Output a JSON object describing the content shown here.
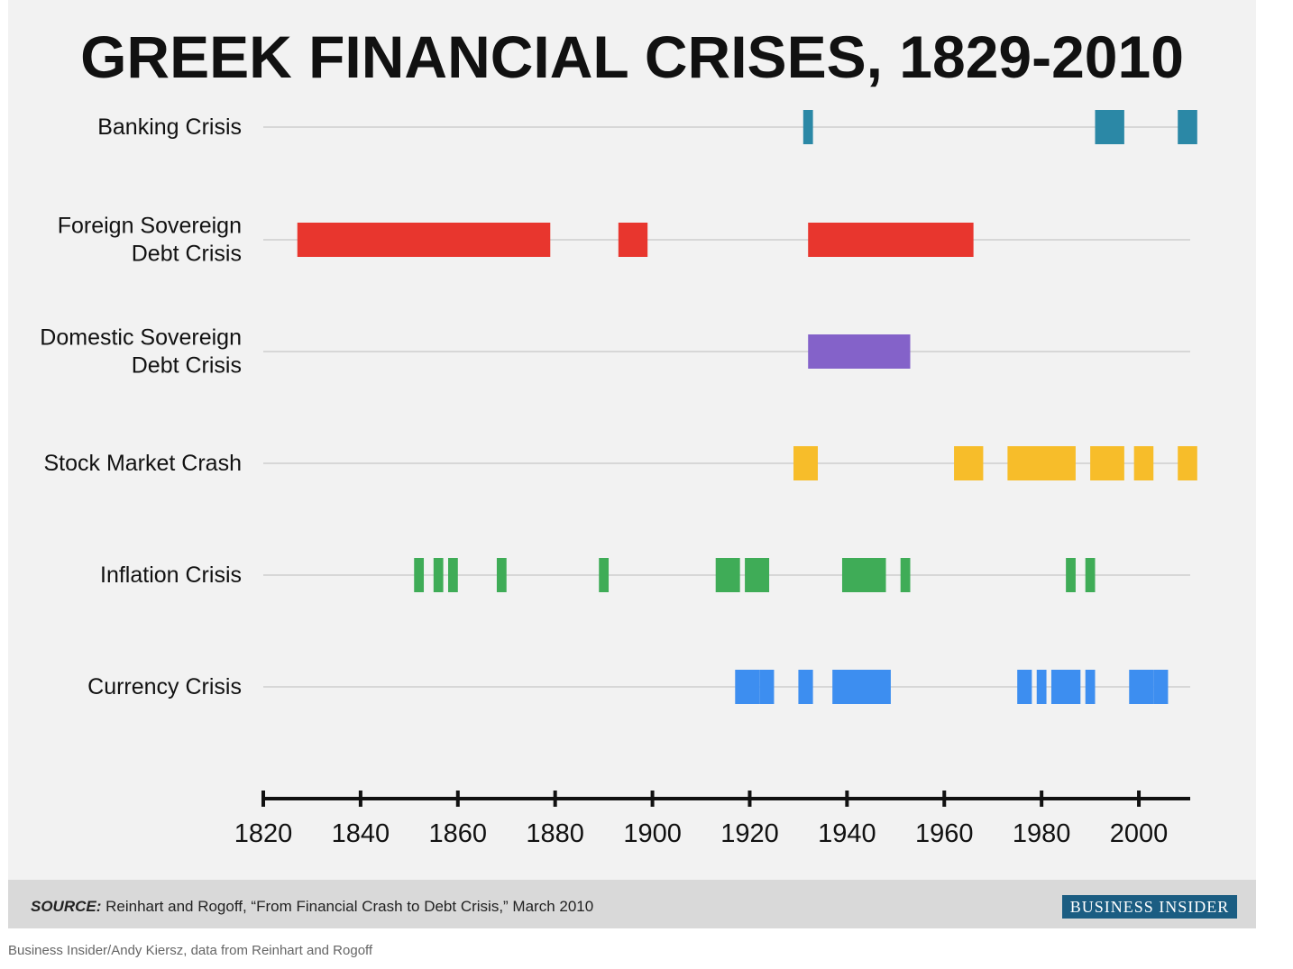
{
  "chart_data": {
    "type": "timeline",
    "title": "GREEK FINANCIAL CRISES, 1829-2010",
    "xlim": [
      1820,
      2010
    ],
    "x_ticks": [
      1820,
      1840,
      1860,
      1880,
      1900,
      1920,
      1940,
      1960,
      1980,
      2000
    ],
    "series": [
      {
        "name": "Banking Crisis",
        "lines": [
          "Banking Crisis"
        ],
        "color": "#2b88a6",
        "periods": [
          [
            1931,
            1933
          ],
          [
            1991,
            1997
          ],
          [
            2008,
            2012
          ]
        ]
      },
      {
        "name": "Foreign Sovereign Debt Crisis",
        "lines": [
          "Foreign Sovereign",
          "Debt Crisis"
        ],
        "color": "#e8362e",
        "periods": [
          [
            1827,
            1879
          ],
          [
            1893,
            1899
          ],
          [
            1932,
            1966
          ]
        ]
      },
      {
        "name": "Domestic Sovereign Debt Crisis",
        "lines": [
          "Domestic Sovereign",
          "Debt Crisis"
        ],
        "color": "#8462c9",
        "periods": [
          [
            1932,
            1953
          ]
        ]
      },
      {
        "name": "Stock Market Crash",
        "lines": [
          "Stock Market Crash"
        ],
        "color": "#f7bd2a",
        "periods": [
          [
            1929,
            1934
          ],
          [
            1962,
            1968
          ],
          [
            1973,
            1987
          ],
          [
            1990,
            1997
          ],
          [
            1999,
            2003
          ],
          [
            2008,
            2012
          ]
        ]
      },
      {
        "name": "Inflation Crisis",
        "lines": [
          "Inflation Crisis"
        ],
        "color": "#3fac57",
        "periods": [
          [
            1851,
            1853
          ],
          [
            1855,
            1857
          ],
          [
            1858,
            1860
          ],
          [
            1868,
            1870
          ],
          [
            1889,
            1891
          ],
          [
            1913,
            1918
          ],
          [
            1919,
            1924
          ],
          [
            1939,
            1948
          ],
          [
            1951,
            1953
          ],
          [
            1985,
            1987
          ],
          [
            1989,
            1991
          ]
        ]
      },
      {
        "name": "Currency Crisis",
        "lines": [
          "Currency Crisis"
        ],
        "color": "#3d8ef0",
        "periods": [
          [
            1917,
            1922
          ],
          [
            1922,
            1925
          ],
          [
            1930,
            1933
          ],
          [
            1937,
            1949
          ],
          [
            1975,
            1978
          ],
          [
            1979,
            1981
          ],
          [
            1982,
            1988
          ],
          [
            1989,
            1991
          ],
          [
            1998,
            2003
          ],
          [
            2003,
            2006
          ]
        ]
      }
    ]
  },
  "source": {
    "label": "SOURCE:",
    "text": " Reinhart and Rogoff, “From Financial Crash to Debt Crisis,” March 2010"
  },
  "brand": "BUSINESS INSIDER",
  "caption": "Business Insider/Andy Kiersz, data from Reinhart and Rogoff",
  "colors": {
    "panel_bg": "#f2f2f2",
    "footer_bg": "#d9d9d9",
    "brand_bg": "#1b5d82",
    "track": "#d7d7d7",
    "axis": "#111111"
  }
}
